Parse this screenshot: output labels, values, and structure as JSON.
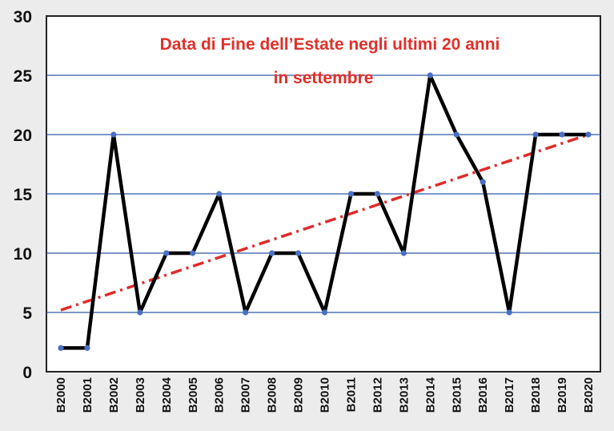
{
  "chart_data": {
    "type": "line",
    "title_lines": [
      "Data di Fine dell’Estate negli ultimi 20 anni",
      "in settembre"
    ],
    "categories": [
      "B2000",
      "B2001",
      "B2002",
      "B2003",
      "B2004",
      "B2005",
      "B2006",
      "B2007",
      "B2008",
      "B2009",
      "B2010",
      "B2011",
      "B2012",
      "B2013",
      "B2014",
      "B2015",
      "B2016",
      "B2017",
      "B2018",
      "B2019",
      "B2020"
    ],
    "series": [
      {
        "values": [
          2,
          2,
          20,
          5,
          10,
          10,
          15,
          5,
          10,
          10,
          5,
          15,
          15,
          10,
          25,
          20,
          16,
          5,
          20,
          20,
          20
        ],
        "color": "#000000",
        "marker_color": "#4a6fc4"
      }
    ],
    "trendline": {
      "style": "dash-dot",
      "color": "#e02a2a",
      "start": 5.2,
      "end": 20
    },
    "ylim": [
      0,
      30
    ],
    "yticks": [
      0,
      5,
      10,
      15,
      20,
      25,
      30
    ],
    "grid": true,
    "grid_color": "#2f5aa8",
    "title_color": "#e0302a"
  }
}
